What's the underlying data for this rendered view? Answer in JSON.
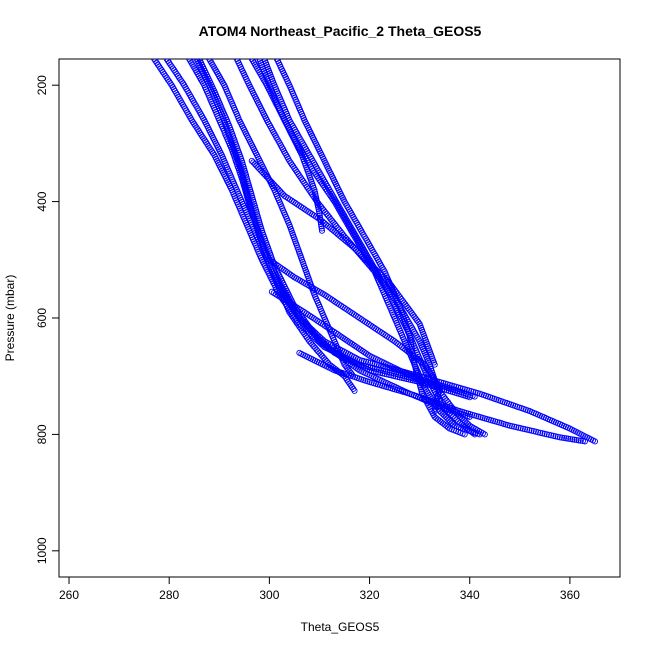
{
  "chart_data": {
    "type": "scatter",
    "title": "ATOM4 Northeast_Pacific_2 Theta_GEOS5",
    "xlabel": "Theta_GEOS5",
    "ylabel": "Pressure (mbar)",
    "xlim": [
      258,
      370
    ],
    "ylim": [
      1045,
      155
    ],
    "y_reversed": true,
    "x_ticks": [
      260,
      280,
      300,
      320,
      340,
      360
    ],
    "y_ticks": [
      200,
      400,
      600,
      800,
      1000
    ],
    "grid": false,
    "legend": "none",
    "marker": "open-circle",
    "color": "#0000ff",
    "series": [
      {
        "points": [
          [
            277.0,
            155
          ],
          [
            280.5,
            200
          ],
          [
            284.5,
            260
          ],
          [
            289.0,
            320
          ],
          [
            292.5,
            380
          ],
          [
            295.5,
            440
          ],
          [
            298.5,
            500
          ],
          [
            302.0,
            560
          ],
          [
            306.0,
            610
          ],
          [
            311.0,
            650
          ],
          [
            318.0,
            680
          ],
          [
            327.0,
            700
          ],
          [
            335.0,
            718
          ],
          [
            341.0,
            735
          ]
        ]
      },
      {
        "points": [
          [
            279.5,
            155
          ],
          [
            283.0,
            200
          ],
          [
            287.0,
            260
          ],
          [
            290.5,
            320
          ],
          [
            294.0,
            390
          ],
          [
            297.0,
            450
          ],
          [
            300.0,
            510
          ],
          [
            303.5,
            570
          ],
          [
            308.0,
            620
          ],
          [
            313.0,
            660
          ],
          [
            320.0,
            690
          ],
          [
            330.0,
            710
          ],
          [
            340.0,
            736
          ]
        ]
      },
      {
        "points": [
          [
            284.0,
            155
          ],
          [
            287.0,
            200
          ],
          [
            290.0,
            260
          ],
          [
            292.5,
            310
          ],
          [
            294.5,
            360
          ],
          [
            296.5,
            420
          ],
          [
            299.0,
            480
          ],
          [
            302.0,
            540
          ],
          [
            306.0,
            600
          ],
          [
            311.0,
            640
          ],
          [
            318.0,
            672
          ],
          [
            330.0,
            700
          ],
          [
            342.0,
            730
          ],
          [
            352.0,
            760
          ],
          [
            360.0,
            790
          ],
          [
            365.0,
            812
          ]
        ]
      },
      {
        "points": [
          [
            285.5,
            155
          ],
          [
            288.0,
            200
          ],
          [
            290.5,
            250
          ],
          [
            292.5,
            300
          ],
          [
            294.5,
            350
          ],
          [
            296.0,
            400
          ],
          [
            298.0,
            460
          ],
          [
            300.5,
            520
          ],
          [
            304.0,
            590
          ],
          [
            308.0,
            640
          ],
          [
            312.0,
            680
          ],
          [
            315.0,
            700
          ],
          [
            317.0,
            725
          ]
        ]
      },
      {
        "points": [
          [
            286.0,
            155
          ],
          [
            289.0,
            210
          ],
          [
            292.0,
            270
          ],
          [
            294.5,
            330
          ],
          [
            296.5,
            390
          ],
          [
            298.5,
            450
          ],
          [
            301.0,
            510
          ],
          [
            305.0,
            580
          ],
          [
            310.0,
            640
          ],
          [
            318.0,
            690
          ],
          [
            328.0,
            730
          ],
          [
            338.0,
            760
          ],
          [
            348.0,
            785
          ],
          [
            358.0,
            805
          ],
          [
            363.0,
            812
          ]
        ]
      },
      {
        "points": [
          [
            288.0,
            155
          ],
          [
            291.0,
            200
          ],
          [
            294.0,
            260
          ],
          [
            297.5,
            320
          ],
          [
            301.0,
            380
          ],
          [
            304.0,
            440
          ],
          [
            306.5,
            500
          ],
          [
            309.0,
            560
          ],
          [
            312.0,
            620
          ],
          [
            315.0,
            680
          ],
          [
            316.5,
            697
          ]
        ]
      },
      {
        "points": [
          [
            293.5,
            155
          ],
          [
            296.0,
            200
          ],
          [
            299.5,
            260
          ],
          [
            304.0,
            330
          ],
          [
            309.5,
            400
          ],
          [
            315.0,
            460
          ],
          [
            321.0,
            520
          ],
          [
            326.0,
            580
          ],
          [
            330.0,
            640
          ],
          [
            332.0,
            680
          ],
          [
            333.5,
            720
          ],
          [
            337.0,
            760
          ],
          [
            340.0,
            785
          ],
          [
            343.0,
            800
          ]
        ]
      },
      {
        "points": [
          [
            296.5,
            155
          ],
          [
            299.5,
            200
          ],
          [
            303.0,
            260
          ],
          [
            306.5,
            320
          ],
          [
            309.0,
            380
          ],
          [
            310.0,
            420
          ],
          [
            310.5,
            450
          ]
        ]
      },
      {
        "points": [
          [
            298.0,
            155
          ],
          [
            300.0,
            200
          ],
          [
            302.5,
            250
          ],
          [
            305.5,
            300
          ],
          [
            309.0,
            350
          ],
          [
            313.0,
            400
          ],
          [
            317.0,
            460
          ],
          [
            321.0,
            520
          ],
          [
            324.0,
            580
          ],
          [
            327.0,
            640
          ],
          [
            329.0,
            680
          ],
          [
            331.0,
            720
          ],
          [
            334.0,
            760
          ],
          [
            337.0,
            785
          ],
          [
            342.0,
            800
          ]
        ]
      },
      {
        "points": [
          [
            299.0,
            155
          ],
          [
            301.0,
            200
          ],
          [
            304.0,
            260
          ],
          [
            308.0,
            320
          ],
          [
            312.0,
            380
          ],
          [
            316.0,
            440
          ],
          [
            320.0,
            500
          ],
          [
            324.0,
            560
          ],
          [
            327.5,
            620
          ],
          [
            330.0,
            670
          ],
          [
            332.0,
            710
          ],
          [
            334.5,
            750
          ],
          [
            338.0,
            780
          ],
          [
            341.0,
            800
          ]
        ]
      },
      {
        "points": [
          [
            301.5,
            155
          ],
          [
            304.0,
            200
          ],
          [
            307.0,
            260
          ],
          [
            311.0,
            330
          ],
          [
            315.0,
            400
          ],
          [
            319.0,
            460
          ],
          [
            323.0,
            520
          ],
          [
            326.0,
            580
          ],
          [
            328.0,
            630
          ],
          [
            329.0,
            680
          ],
          [
            330.5,
            730
          ],
          [
            333.0,
            770
          ],
          [
            336.0,
            790
          ],
          [
            339.0,
            800
          ]
        ]
      },
      {
        "points": [
          [
            300.0,
            500
          ],
          [
            305.0,
            530
          ],
          [
            311.0,
            560
          ],
          [
            318.0,
            600
          ],
          [
            325.0,
            640
          ],
          [
            331.0,
            680
          ],
          [
            334.0,
            720
          ],
          [
            333.0,
            760
          ]
        ]
      },
      {
        "points": [
          [
            296.5,
            330
          ],
          [
            303.0,
            390
          ],
          [
            310.0,
            430
          ],
          [
            317.0,
            480
          ],
          [
            324.0,
            540
          ],
          [
            330.0,
            610
          ],
          [
            333.0,
            680
          ]
        ]
      },
      {
        "points": [
          [
            300.5,
            555
          ],
          [
            307.0,
            590
          ],
          [
            314.0,
            630
          ],
          [
            320.0,
            665
          ],
          [
            326.0,
            690
          ],
          [
            330.0,
            705
          ]
        ]
      },
      {
        "points": [
          [
            306.0,
            660
          ],
          [
            313.0,
            690
          ],
          [
            320.0,
            710
          ],
          [
            328.0,
            730
          ],
          [
            335.0,
            755
          ],
          [
            340.0,
            770
          ]
        ]
      }
    ]
  }
}
